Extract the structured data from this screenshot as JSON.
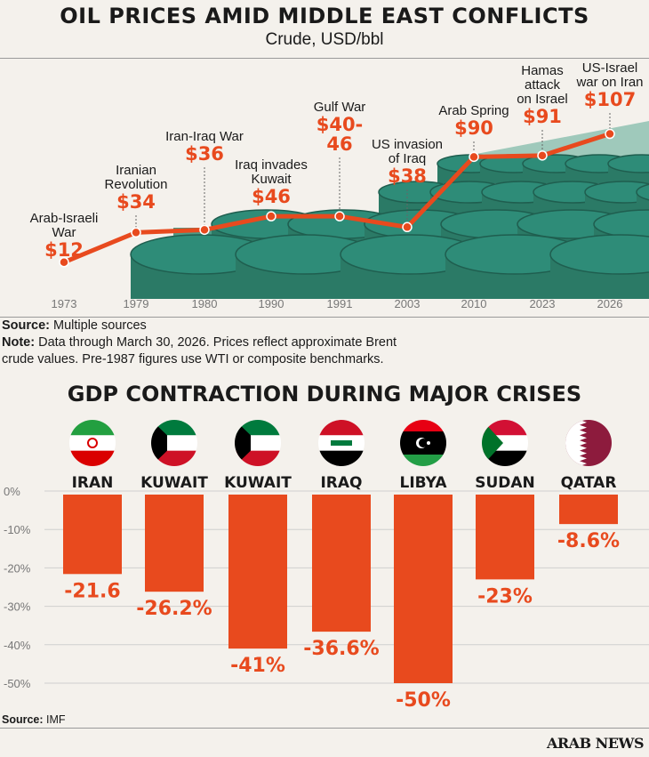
{
  "header": {
    "title": "OIL PRICES AMID MIDDLE EAST CONFLICTS",
    "subtitle": "Crude, USD/bbl"
  },
  "colors": {
    "accent": "#e84a1e",
    "background": "#f4f1ec",
    "barrel": "#2e8c78",
    "text": "#1a1a1a",
    "axis_text": "#777777"
  },
  "chart_data": [
    {
      "type": "line",
      "title": "OIL PRICES AMID MIDDLE EAST CONFLICTS",
      "subtitle": "Crude, USD/bbl",
      "categories": [
        "1973",
        "1979",
        "1980",
        "1990",
        "1991",
        "2003",
        "2010",
        "2023",
        "2026"
      ],
      "values": [
        12,
        34,
        36,
        46,
        46,
        38,
        90,
        91,
        107
      ],
      "events": [
        {
          "name": "Arab-Israeli War",
          "label": "$12"
        },
        {
          "name": "Iranian Revolution",
          "label": "$34"
        },
        {
          "name": "Iran-Iraq War",
          "label": "$36"
        },
        {
          "name": "Iraq invades Kuwait",
          "label": "$46"
        },
        {
          "name": "Gulf War",
          "label": "$40-46"
        },
        {
          "name": "US invasion of Iraq",
          "label": "$38"
        },
        {
          "name": "Arab Spring",
          "label": "$90"
        },
        {
          "name": "Hamas attack on Israel",
          "label": "$91"
        },
        {
          "name": "US-Israel war on Iran",
          "label": "$107"
        }
      ],
      "grid": false,
      "legend": "none"
    },
    {
      "type": "bar",
      "title": "GDP CONTRACTION DURING MAJOR CRISES",
      "categories": [
        "IRAN",
        "KUWAIT",
        "KUWAIT",
        "IRAQ",
        "LIBYA",
        "SUDAN",
        "QATAR"
      ],
      "values": [
        -21.6,
        -26.2,
        -41,
        -36.6,
        -50,
        -23,
        -8.6
      ],
      "value_labels": [
        "-21.6",
        "-26.2%",
        "-41%",
        "-36.6%",
        "-50%",
        "-23%",
        "-8.6%"
      ],
      "flags": [
        "iran-flag",
        "kuwait-flag",
        "kuwait-flag",
        "iraq-flag",
        "libya-flag",
        "sudan-flag",
        "qatar-flag"
      ],
      "y_ticks": [
        "0%",
        "-10%",
        "-20%",
        "-30%",
        "-40%",
        "-50%"
      ],
      "ylim": [
        -50,
        0
      ],
      "grid": true,
      "legend": "none"
    }
  ],
  "source_oil": {
    "label": "Source:",
    "text": " Multiple sources"
  },
  "note": {
    "label": "Note:",
    "line1": " Data through March 30, 2026. Prices reflect approximate Brent",
    "line2": "crude values. Pre-1987 figures use WTI or composite benchmarks."
  },
  "source_gdp": {
    "label": "Source:",
    "text": " IMF"
  },
  "brand": "ARAB NEWS"
}
